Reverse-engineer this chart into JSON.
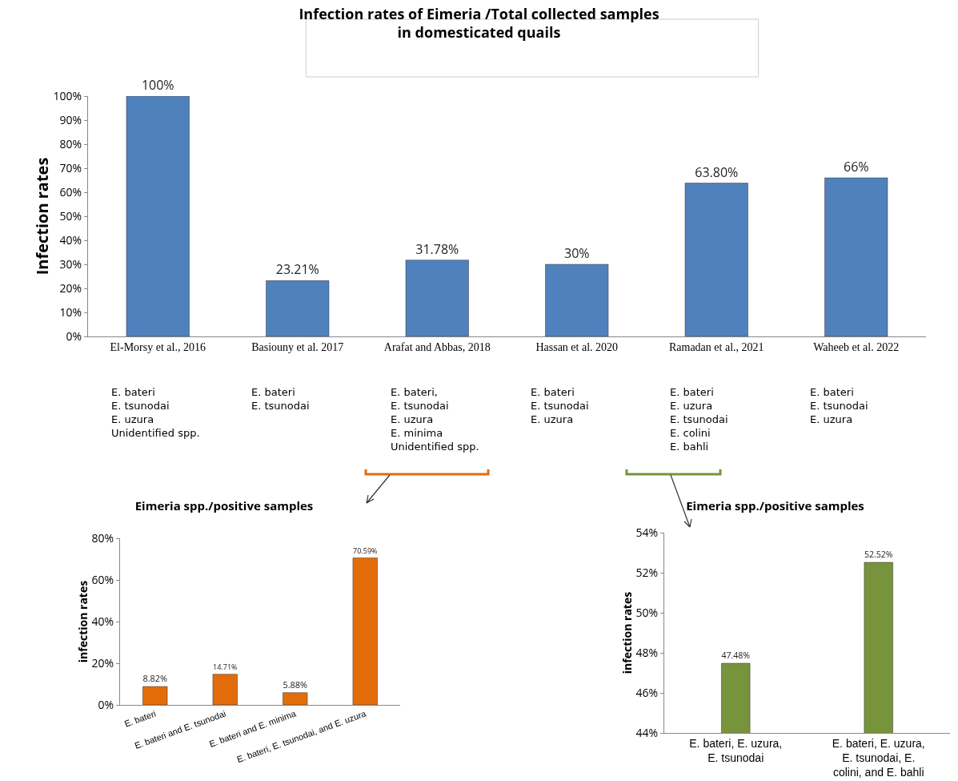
{
  "chart_data": [
    {
      "type": "bar",
      "title": "Infection rates of Eimeria /Total collected samples\nin domesticated quails",
      "ylabel": "Infection rates",
      "categories": [
        "El-Morsy et al., 2016",
        "Basiouny et al. 2017",
        "Arafat and Abbas, 2018",
        "Hassan et al. 2020",
        "Ramadan et al., 2021",
        "Waheeb et al. 2022"
      ],
      "series": [
        {
          "color": "#4f81bd",
          "values": [
            100,
            23.21,
            31.78,
            30,
            63.8,
            66
          ],
          "value_labels": [
            "100%",
            "23.21%",
            "31.78%",
            "30%",
            "63.80%",
            "66%"
          ]
        }
      ],
      "ylim": [
        0,
        100
      ],
      "yticks": [
        {
          "value": 0,
          "label": "0%"
        },
        {
          "value": 10,
          "label": "10%"
        },
        {
          "value": 20,
          "label": "20%"
        },
        {
          "value": 30,
          "label": "30%"
        },
        {
          "value": 40,
          "label": "40%"
        },
        {
          "value": 50,
          "label": "50%"
        },
        {
          "value": 60,
          "label": "60%"
        },
        {
          "value": 70,
          "label": "70%"
        },
        {
          "value": 80,
          "label": "80%"
        },
        {
          "value": 90,
          "label": "90%"
        },
        {
          "value": 100,
          "label": "100%"
        }
      ],
      "annotations": [
        "E. bateri\nE. tsunodai\nE. uzura\nUnidentified spp.",
        "E. bateri\nE. tsunodai",
        "E. bateri,\nE. tsunodai\nE. uzura\nE. minima\nUnidentified spp.",
        "E. bateri\nE. tsunodai\nE. uzura",
        "E. bateri\nE. uzura\nE. tsunodai\nE. colini\nE. bahli",
        "E. bateri\nE. tsunodai\nE. uzura"
      ],
      "grid": false,
      "legend": false
    },
    {
      "type": "bar",
      "title": "Eimeria spp./positive samples",
      "ylabel": "infection rates",
      "categories": [
        "E. bateri",
        "E. bateri and E. tsunodai",
        "E. bateri and E. minima",
        "E. bateri, E. tsunodai, and E. uzura"
      ],
      "series": [
        {
          "color": "#e36c0a",
          "values": [
            8.82,
            14.71,
            5.88,
            70.59
          ],
          "value_labels": [
            "8.82%",
            "14.71%",
            "5.88%",
            "70.59%"
          ]
        }
      ],
      "ylim": [
        0,
        80
      ],
      "yticks": [
        {
          "value": 0,
          "label": "0%"
        },
        {
          "value": 20,
          "label": "20%"
        },
        {
          "value": 40,
          "label": "40%"
        },
        {
          "value": 60,
          "label": "60%"
        },
        {
          "value": 80,
          "label": "80%"
        }
      ],
      "grid": false,
      "legend": false
    },
    {
      "type": "bar",
      "title": "Eimeria spp./positive samples",
      "ylabel": "infection rates",
      "categories": [
        "E. bateri, E. uzura, E. tsunodai",
        "E. bateri, E. uzura, E. tsunodai, E. colini, and E. bahli"
      ],
      "series": [
        {
          "color": "#77933c",
          "values": [
            47.48,
            52.52
          ],
          "value_labels": [
            "47.48%",
            "52.52%"
          ]
        }
      ],
      "ylim": [
        44,
        54
      ],
      "yticks": [
        {
          "value": 44,
          "label": "44%"
        },
        {
          "value": 46,
          "label": "46%"
        },
        {
          "value": 48,
          "label": "48%"
        },
        {
          "value": 50,
          "label": "50%"
        },
        {
          "value": 52,
          "label": "52%"
        },
        {
          "value": 54,
          "label": "54%"
        }
      ],
      "grid": false,
      "legend": false
    }
  ]
}
